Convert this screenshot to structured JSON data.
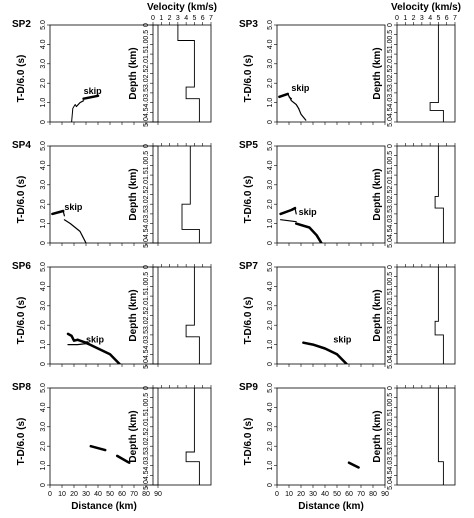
{
  "chart_data": {
    "type": "line",
    "labels": {
      "tt_ylabel": "T-D/6.0 (s)",
      "vel_ylabel": "Depth (km)",
      "vel_xlabel": "Velocity (km/s)",
      "xlabel": "Distance (km)",
      "skip": "skip"
    },
    "tt_xlim": [
      0,
      90
    ],
    "tt_ylim": [
      0,
      5
    ],
    "tt_xticks": [
      0,
      10,
      20,
      30,
      40,
      50,
      60,
      70,
      80,
      90
    ],
    "tt_yticks": [
      "0",
      "1.0",
      "2.0",
      "3.0",
      "4.0",
      "5.0"
    ],
    "vel_xlim": [
      0,
      7
    ],
    "vel_xticks": [
      "0",
      "1",
      "2",
      "3",
      "4",
      "5",
      "6",
      "7"
    ],
    "depth_ylim": [
      0,
      5
    ],
    "depth_yticks": [
      "0",
      "0.5",
      "1.0",
      "1.5",
      "2.0",
      "2.5",
      "3.0",
      "3.5",
      "4.0",
      "4.5",
      "5.0"
    ],
    "panels": [
      {
        "name": "SP2",
        "skip": [
          28,
          1.45
        ],
        "tt": [
          {
            "w": 1,
            "pts": [
              [
                18,
                0
              ],
              [
                19,
                0.7
              ],
              [
                21,
                0.9
              ],
              [
                22,
                0.8
              ]
            ]
          },
          {
            "w": 1.2,
            "pts": [
              [
                22,
                0.8
              ],
              [
                25,
                1.0
              ],
              [
                28,
                1.1
              ]
            ]
          },
          {
            "w": 2.5,
            "pts": [
              [
                28,
                1.2
              ],
              [
                40,
                1.35
              ]
            ]
          }
        ],
        "vel": [
          [
            3,
            0
          ],
          [
            3,
            0.8
          ],
          [
            5,
            0.8
          ],
          [
            5,
            3.2
          ],
          [
            4,
            3.2
          ],
          [
            4,
            3.8
          ],
          [
            5.6,
            3.8
          ],
          [
            5.6,
            5
          ]
        ]
      },
      {
        "name": "SP3",
        "skip": [
          12,
          1.6
        ],
        "tt": [
          {
            "w": 2.5,
            "pts": [
              [
                2,
                1.3
              ],
              [
                9,
                1.45
              ]
            ]
          },
          {
            "w": 1.2,
            "pts": [
              [
                9,
                1.45
              ],
              [
                12,
                1.1
              ],
              [
                16,
                0.9
              ],
              [
                18,
                0.7
              ]
            ]
          },
          {
            "w": 1.2,
            "pts": [
              [
                10,
                1.3
              ],
              [
                12,
                1.2
              ]
            ]
          },
          {
            "w": 1.2,
            "pts": [
              [
                18,
                0.7
              ],
              [
                20,
                0.4
              ],
              [
                24,
                0.1
              ]
            ]
          }
        ],
        "vel": [
          [
            5,
            0
          ],
          [
            5,
            4
          ],
          [
            4,
            4
          ],
          [
            4,
            4.4
          ],
          [
            5.6,
            4.4
          ],
          [
            5.6,
            5
          ]
        ]
      },
      {
        "name": "SP4",
        "skip": [
          12,
          1.7
        ],
        "tt": [
          {
            "w": 2.5,
            "pts": [
              [
                2,
                1.5
              ],
              [
                11,
                1.65
              ]
            ]
          },
          {
            "w": 1.2,
            "pts": [
              [
                11,
                1.65
              ],
              [
                12,
                1.4
              ]
            ]
          },
          {
            "w": 1.2,
            "pts": [
              [
                12,
                1.2
              ],
              [
                17,
                1.0
              ],
              [
                25,
                0.6
              ],
              [
                30,
                0
              ]
            ]
          }
        ],
        "vel": [
          [
            4.5,
            0
          ],
          [
            4.5,
            3
          ],
          [
            3.5,
            3
          ],
          [
            3.5,
            4.3
          ],
          [
            5.6,
            4.3
          ],
          [
            5.6,
            5
          ]
        ]
      },
      {
        "name": "SP5",
        "skip": [
          18,
          1.45
        ],
        "tt": [
          {
            "w": 2.5,
            "pts": [
              [
                3,
                1.5
              ],
              [
                12,
                1.7
              ],
              [
                15,
                1.8
              ]
            ]
          },
          {
            "w": 1.2,
            "pts": [
              [
                15,
                1.8
              ],
              [
                16,
                1.5
              ]
            ]
          },
          {
            "w": 1.2,
            "pts": [
              [
                3,
                1.2
              ],
              [
                16,
                1.1
              ]
            ]
          },
          {
            "w": 2.5,
            "pts": [
              [
                16,
                1.0
              ],
              [
                27,
                0.8
              ],
              [
                33,
                0.4
              ],
              [
                37,
                0
              ]
            ]
          }
        ],
        "vel": [
          [
            5,
            0
          ],
          [
            5,
            2.6
          ],
          [
            4.6,
            2.6
          ],
          [
            4.6,
            3.2
          ],
          [
            5.6,
            3.2
          ],
          [
            5.6,
            5
          ]
        ]
      },
      {
        "name": "SP6",
        "skip": [
          30,
          1.1
        ],
        "tt": [
          {
            "w": 2.5,
            "pts": [
              [
                15,
                1.55
              ],
              [
                18,
                1.45
              ],
              [
                20,
                1.2
              ],
              [
                23,
                1.25
              ]
            ]
          },
          {
            "w": 1.2,
            "pts": [
              [
                15,
                1.0
              ],
              [
                23,
                1.0
              ],
              [
                30,
                1.05
              ],
              [
                32,
                1.0
              ]
            ]
          },
          {
            "w": 2.5,
            "pts": [
              [
                23,
                1.25
              ],
              [
                30,
                1.1
              ],
              [
                40,
                0.8
              ],
              [
                50,
                0.5
              ],
              [
                58,
                0
              ]
            ]
          }
        ],
        "vel": [
          [
            5,
            0
          ],
          [
            5,
            3
          ],
          [
            4,
            3
          ],
          [
            4,
            3.6
          ],
          [
            5.6,
            3.6
          ],
          [
            5.6,
            5
          ]
        ]
      },
      {
        "name": "SP7",
        "skip": [
          47,
          1.1
        ],
        "tt": [
          {
            "w": 2.5,
            "pts": [
              [
                22,
                1.1
              ],
              [
                30,
                1.0
              ],
              [
                40,
                0.8
              ],
              [
                50,
                0.5
              ],
              [
                58,
                0
              ]
            ]
          }
        ],
        "vel": [
          [
            5,
            0
          ],
          [
            5,
            2.8
          ],
          [
            4.6,
            2.8
          ],
          [
            4.6,
            3.5
          ],
          [
            5.6,
            3.5
          ],
          [
            5.6,
            5
          ]
        ]
      },
      {
        "name": "SP8",
        "skip": null,
        "tt": [
          {
            "w": 2.5,
            "pts": [
              [
                34,
                2.0
              ],
              [
                46,
                1.8
              ]
            ]
          },
          {
            "w": 2.5,
            "pts": [
              [
                56,
                1.5
              ],
              [
                66,
                1.15
              ]
            ]
          }
        ],
        "vel": [
          [
            5,
            0
          ],
          [
            5,
            3.3
          ],
          [
            4,
            3.3
          ],
          [
            4,
            3.8
          ],
          [
            5.6,
            3.8
          ],
          [
            5.6,
            5
          ]
        ]
      },
      {
        "name": "SP9",
        "skip": null,
        "tt": [
          {
            "w": 2.5,
            "pts": [
              [
                60,
                1.15
              ],
              [
                68,
                0.9
              ]
            ]
          }
        ],
        "vel": [
          [
            5,
            0
          ],
          [
            5,
            3.8
          ],
          [
            5.6,
            3.8
          ],
          [
            5.6,
            5
          ]
        ]
      }
    ]
  }
}
